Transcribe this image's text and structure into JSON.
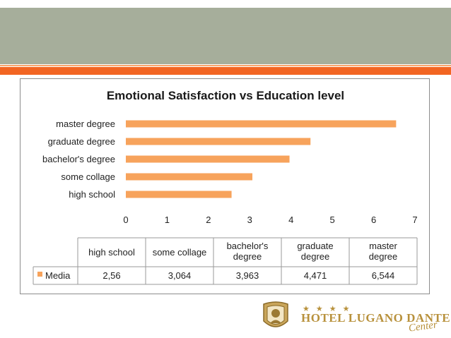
{
  "chart_data": {
    "type": "bar",
    "orientation": "horizontal",
    "title": "Emotional Satisfaction vs Education level",
    "categories": [
      "high school",
      "some collage",
      "bachelor's degree",
      "graduate degree",
      "master degree"
    ],
    "series": [
      {
        "name": "Media",
        "values": [
          2.56,
          3.064,
          3.963,
          4.471,
          6.544
        ],
        "color": "#f7a35c"
      }
    ],
    "xlim": [
      0,
      7
    ],
    "xticks": [
      "0",
      "1",
      "2",
      "3",
      "4",
      "5",
      "6",
      "7"
    ],
    "grid": false,
    "table": {
      "headers": [
        [
          "high school"
        ],
        [
          "some collage"
        ],
        [
          "bachelor's",
          "degree"
        ],
        [
          "graduate",
          "degree"
        ],
        [
          "master",
          "degree"
        ]
      ],
      "row_label": "Media",
      "values": [
        "2,56",
        "3,064",
        "3,963",
        "4,471",
        "6,544"
      ]
    }
  },
  "branding": {
    "stars": "★★★★",
    "hotel_name": "HOTEL LUGANO DANTE",
    "subtitle": "Center",
    "logo_color": "#b8913c"
  }
}
